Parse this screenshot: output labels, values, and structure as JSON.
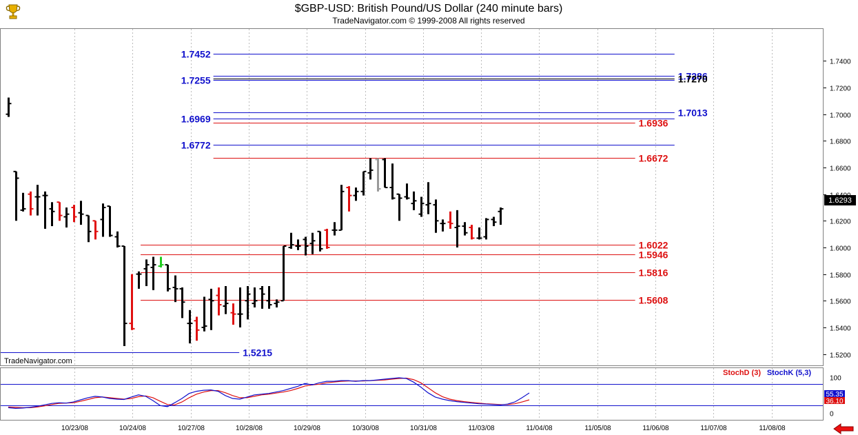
{
  "header": {
    "title": "$GBP-USD:  British Pound/US Dollar  (240 minute bars)",
    "copyright": "TradeNavigator.com © 1999-2008 All rights reserved",
    "watermark": "TradeNavigator.com"
  },
  "colors": {
    "bar_black": "#000000",
    "bar_red": "#e01010",
    "bar_gray": "#999999",
    "bar_green": "#22cc22",
    "level_blue": "#1010cc",
    "level_red": "#dd1010",
    "stoch_d": "#dd1010",
    "stoch_k": "#1010cc",
    "grid": "#bbbbbb"
  },
  "icons": {
    "logo": "trophy-logo-icon",
    "scroll": "red-left-arrow-icon"
  },
  "chart_data": [
    {
      "type": "ohlc",
      "title": "$GBP-USD:  British Pound/US Dollar  (240 minute bars)",
      "ylim": [
        1.5115,
        1.764
      ],
      "y_ticks": [
        "1.5200",
        "1.5400",
        "1.5600",
        "1.5800",
        "1.6000",
        "1.6200",
        "1.6400",
        "1.6600",
        "1.6800",
        "1.7000",
        "1.7200",
        "1.7400"
      ],
      "x_dates": [
        "10/23/08",
        "10/24/08",
        "10/27/08",
        "10/28/08",
        "10/29/08",
        "10/30/08",
        "10/31/08",
        "11/03/08",
        "11/04/08",
        "11/05/08",
        "11/06/08",
        "11/07/08",
        "11/08/08"
      ],
      "bars": [
        {
          "o": 1.7,
          "h": 1.7125,
          "l": 1.698,
          "c": 1.708,
          "color": "black"
        },
        {
          "o": 1.657,
          "h": 1.657,
          "l": 1.62,
          "c": 1.652,
          "color": "black"
        },
        {
          "o": 1.628,
          "h": 1.641,
          "l": 1.627,
          "c": 1.629,
          "color": "black"
        },
        {
          "o": 1.64,
          "h": 1.642,
          "l": 1.624,
          "c": 1.629,
          "color": "red"
        },
        {
          "o": 1.638,
          "h": 1.647,
          "l": 1.624,
          "c": 1.638,
          "color": "black"
        },
        {
          "o": 1.639,
          "h": 1.642,
          "l": 1.614,
          "c": 1.639,
          "color": "black"
        },
        {
          "o": 1.629,
          "h": 1.634,
          "l": 1.616,
          "c": 1.627,
          "color": "black"
        },
        {
          "o": 1.634,
          "h": 1.634,
          "l": 1.62,
          "c": 1.624,
          "color": "red"
        },
        {
          "o": 1.623,
          "h": 1.63,
          "l": 1.615,
          "c": 1.625,
          "color": "black"
        },
        {
          "o": 1.63,
          "h": 1.632,
          "l": 1.619,
          "c": 1.623,
          "color": "red"
        },
        {
          "o": 1.626,
          "h": 1.635,
          "l": 1.617,
          "c": 1.625,
          "color": "black"
        },
        {
          "o": 1.624,
          "h": 1.624,
          "l": 1.604,
          "c": 1.612,
          "color": "black"
        },
        {
          "o": 1.62,
          "h": 1.62,
          "l": 1.606,
          "c": 1.612,
          "color": "red"
        },
        {
          "o": 1.621,
          "h": 1.633,
          "l": 1.608,
          "c": 1.63,
          "color": "black"
        },
        {
          "o": 1.631,
          "h": 1.631,
          "l": 1.608,
          "c": 1.609,
          "color": "black"
        },
        {
          "o": 1.608,
          "h": 1.612,
          "l": 1.6,
          "c": 1.601,
          "color": "black"
        },
        {
          "o": 1.601,
          "h": 1.601,
          "l": 1.526,
          "c": 1.543,
          "color": "black"
        },
        {
          "o": 1.543,
          "h": 1.58,
          "l": 1.538,
          "c": 1.539,
          "color": "red"
        },
        {
          "o": 1.58,
          "h": 1.582,
          "l": 1.569,
          "c": 1.58,
          "color": "black"
        },
        {
          "o": 1.584,
          "h": 1.591,
          "l": 1.571,
          "c": 1.587,
          "color": "black"
        },
        {
          "o": 1.585,
          "h": 1.593,
          "l": 1.568,
          "c": 1.587,
          "color": "black"
        },
        {
          "o": 1.586,
          "h": 1.593,
          "l": 1.585,
          "c": 1.587,
          "color": "green"
        },
        {
          "o": 1.587,
          "h": 1.587,
          "l": 1.567,
          "c": 1.569,
          "color": "black"
        },
        {
          "o": 1.57,
          "h": 1.579,
          "l": 1.559,
          "c": 1.569,
          "color": "black"
        },
        {
          "o": 1.569,
          "h": 1.57,
          "l": 1.547,
          "c": 1.559,
          "color": "black"
        },
        {
          "o": 1.543,
          "h": 1.553,
          "l": 1.528,
          "c": 1.543,
          "color": "black"
        },
        {
          "o": 1.545,
          "h": 1.548,
          "l": 1.53,
          "c": 1.538,
          "color": "red"
        },
        {
          "o": 1.54,
          "h": 1.563,
          "l": 1.537,
          "c": 1.541,
          "color": "black"
        },
        {
          "o": 1.561,
          "h": 1.569,
          "l": 1.538,
          "c": 1.56,
          "color": "black"
        },
        {
          "o": 1.564,
          "h": 1.57,
          "l": 1.549,
          "c": 1.557,
          "color": "red"
        },
        {
          "o": 1.556,
          "h": 1.571,
          "l": 1.55,
          "c": 1.558,
          "color": "black"
        },
        {
          "o": 1.551,
          "h": 1.558,
          "l": 1.542,
          "c": 1.55,
          "color": "red"
        },
        {
          "o": 1.55,
          "h": 1.57,
          "l": 1.54,
          "c": 1.55,
          "color": "black"
        },
        {
          "o": 1.56,
          "h": 1.571,
          "l": 1.546,
          "c": 1.565,
          "color": "black"
        },
        {
          "o": 1.558,
          "h": 1.57,
          "l": 1.555,
          "c": 1.56,
          "color": "black"
        },
        {
          "o": 1.569,
          "h": 1.571,
          "l": 1.554,
          "c": 1.565,
          "color": "black"
        },
        {
          "o": 1.56,
          "h": 1.571,
          "l": 1.554,
          "c": 1.557,
          "color": "black"
        },
        {
          "o": 1.558,
          "h": 1.561,
          "l": 1.555,
          "c": 1.559,
          "color": "black"
        },
        {
          "o": 1.56,
          "h": 1.601,
          "l": 1.56,
          "c": 1.601,
          "color": "black"
        },
        {
          "o": 1.6,
          "h": 1.611,
          "l": 1.599,
          "c": 1.602,
          "color": "black"
        },
        {
          "o": 1.601,
          "h": 1.606,
          "l": 1.598,
          "c": 1.601,
          "color": "black"
        },
        {
          "o": 1.606,
          "h": 1.608,
          "l": 1.594,
          "c": 1.601,
          "color": "black"
        },
        {
          "o": 1.603,
          "h": 1.611,
          "l": 1.595,
          "c": 1.605,
          "color": "black"
        },
        {
          "o": 1.612,
          "h": 1.612,
          "l": 1.597,
          "c": 1.599,
          "color": "black"
        },
        {
          "o": 1.613,
          "h": 1.614,
          "l": 1.599,
          "c": 1.6,
          "color": "red"
        },
        {
          "o": 1.613,
          "h": 1.619,
          "l": 1.609,
          "c": 1.613,
          "color": "black"
        },
        {
          "o": 1.613,
          "h": 1.647,
          "l": 1.613,
          "c": 1.642,
          "color": "black"
        },
        {
          "o": 1.645,
          "h": 1.646,
          "l": 1.627,
          "c": 1.639,
          "color": "red"
        },
        {
          "o": 1.639,
          "h": 1.645,
          "l": 1.635,
          "c": 1.642,
          "color": "black"
        },
        {
          "o": 1.642,
          "h": 1.657,
          "l": 1.639,
          "c": 1.657,
          "color": "black"
        },
        {
          "o": 1.656,
          "h": 1.667,
          "l": 1.651,
          "c": 1.658,
          "color": "black"
        },
        {
          "o": 1.666,
          "h": 1.667,
          "l": 1.642,
          "c": 1.644,
          "color": "gray"
        },
        {
          "o": 1.666,
          "h": 1.667,
          "l": 1.645,
          "c": 1.645,
          "color": "black"
        },
        {
          "o": 1.645,
          "h": 1.663,
          "l": 1.636,
          "c": 1.637,
          "color": "black"
        },
        {
          "o": 1.64,
          "h": 1.64,
          "l": 1.62,
          "c": 1.637,
          "color": "black"
        },
        {
          "o": 1.638,
          "h": 1.648,
          "l": 1.636,
          "c": 1.637,
          "color": "black"
        },
        {
          "o": 1.633,
          "h": 1.642,
          "l": 1.628,
          "c": 1.635,
          "color": "black"
        },
        {
          "o": 1.625,
          "h": 1.638,
          "l": 1.623,
          "c": 1.633,
          "color": "black"
        },
        {
          "o": 1.632,
          "h": 1.649,
          "l": 1.625,
          "c": 1.633,
          "color": "black"
        },
        {
          "o": 1.632,
          "h": 1.636,
          "l": 1.611,
          "c": 1.62,
          "color": "black"
        },
        {
          "o": 1.618,
          "h": 1.621,
          "l": 1.612,
          "c": 1.618,
          "color": "black"
        },
        {
          "o": 1.619,
          "h": 1.627,
          "l": 1.614,
          "c": 1.618,
          "color": "red"
        },
        {
          "o": 1.615,
          "h": 1.628,
          "l": 1.6,
          "c": 1.616,
          "color": "black"
        },
        {
          "o": 1.616,
          "h": 1.619,
          "l": 1.609,
          "c": 1.611,
          "color": "black"
        },
        {
          "o": 1.615,
          "h": 1.617,
          "l": 1.606,
          "c": 1.607,
          "color": "red"
        },
        {
          "o": 1.607,
          "h": 1.615,
          "l": 1.606,
          "c": 1.607,
          "color": "black"
        },
        {
          "o": 1.608,
          "h": 1.622,
          "l": 1.606,
          "c": 1.621,
          "color": "black"
        },
        {
          "o": 1.621,
          "h": 1.623,
          "l": 1.616,
          "c": 1.619,
          "color": "black"
        },
        {
          "o": 1.627,
          "h": 1.63,
          "l": 1.617,
          "c": 1.629,
          "color": "black"
        }
      ],
      "last_price": "1.6293",
      "levels": [
        {
          "value": 1.7452,
          "label": "1.7452",
          "color": "blue",
          "label_side": "left",
          "x_from": 0.2587,
          "x_to": 0.8196
        },
        {
          "value": 1.7286,
          "label": "1.7286",
          "color": "blue",
          "label_side": "right",
          "x_from": 0.2587,
          "x_to": 0.8196
        },
        {
          "value": 1.727,
          "label": "1.7270",
          "color": "black",
          "label_side": "right",
          "x_from": 0.2587,
          "x_to": 0.8196
        },
        {
          "value": 1.7255,
          "label": "1.7255",
          "color": "blue",
          "label_side": "left",
          "x_from": 0.2587,
          "x_to": 0.8196
        },
        {
          "value": 1.7013,
          "label": "1.7013",
          "color": "blue",
          "label_side": "right",
          "x_from": 0.2587,
          "x_to": 0.8196
        },
        {
          "value": 1.6969,
          "label": "1.6969",
          "color": "blue",
          "label_side": "left",
          "x_from": 0.2587,
          "x_to": 0.8196
        },
        {
          "value": 1.6936,
          "label": "1.6936",
          "color": "red",
          "label_side": "right",
          "x_from": 0.2587,
          "x_to": 0.7717
        },
        {
          "value": 1.6772,
          "label": "1.6772",
          "color": "blue",
          "label_side": "left",
          "x_from": 0.2587,
          "x_to": 0.8196
        },
        {
          "value": 1.6672,
          "label": "1.6672",
          "color": "red",
          "label_side": "right",
          "x_from": 0.2587,
          "x_to": 0.7717
        },
        {
          "value": 1.6022,
          "label": "1.6022",
          "color": "red",
          "label_side": "right",
          "x_from": 0.1702,
          "x_to": 0.7717
        },
        {
          "value": 1.5946,
          "label": "1.5946",
          "color": "red",
          "label_side": "right",
          "x_from": 0.1702,
          "x_to": 0.7717
        },
        {
          "value": 1.5816,
          "label": "1.5816",
          "color": "red",
          "label_side": "right",
          "x_from": 0.1702,
          "x_to": 0.7717
        },
        {
          "value": 1.5608,
          "label": "1.5608",
          "color": "red",
          "label_side": "right",
          "x_from": 0.1702,
          "x_to": 0.7717
        },
        {
          "value": 1.5215,
          "label": "1.5215",
          "color": "blue",
          "label_side": "right",
          "x_from": 0.0,
          "x_to": 0.2902
        }
      ]
    },
    {
      "type": "line",
      "legend": [
        {
          "name": "StochD (3)",
          "color": "red"
        },
        {
          "name": "StochK (5,3)",
          "color": "blue"
        }
      ],
      "ylim": [
        -20,
        125
      ],
      "y_ticks": [
        "100",
        "0"
      ],
      "ref_lines": [
        80,
        20
      ],
      "last_values": {
        "k": "55.35",
        "d": "36.10"
      },
      "k": [
        14,
        12,
        13,
        15,
        18,
        22,
        26,
        28,
        27,
        30,
        36,
        42,
        46,
        44,
        40,
        38,
        37,
        44,
        50,
        46,
        34,
        20,
        17,
        28,
        40,
        54,
        60,
        63,
        64,
        60,
        48,
        40,
        38,
        44,
        50,
        52,
        54,
        58,
        62,
        68,
        74,
        82,
        78,
        84,
        88,
        88,
        90,
        90,
        88,
        90,
        90,
        92,
        94,
        96,
        98,
        96,
        86,
        72,
        56,
        44,
        38,
        34,
        31,
        29,
        27,
        25,
        24,
        23,
        22,
        24,
        30,
        42,
        55.35
      ],
      "d": [
        16,
        15,
        14,
        14,
        16,
        19,
        23,
        26,
        27,
        28,
        32,
        37,
        42,
        44,
        42,
        40,
        38,
        40,
        45,
        47,
        42,
        32,
        23,
        22,
        30,
        42,
        52,
        58,
        62,
        62,
        56,
        48,
        42,
        42,
        46,
        50,
        52,
        55,
        58,
        62,
        68,
        75,
        78,
        80,
        84,
        86,
        88,
        89,
        89,
        89,
        90,
        91,
        92,
        94,
        96,
        97,
        93,
        84,
        70,
        56,
        45,
        38,
        34,
        31,
        29,
        27,
        25,
        24,
        23,
        23,
        25,
        30,
        36.1
      ]
    }
  ]
}
